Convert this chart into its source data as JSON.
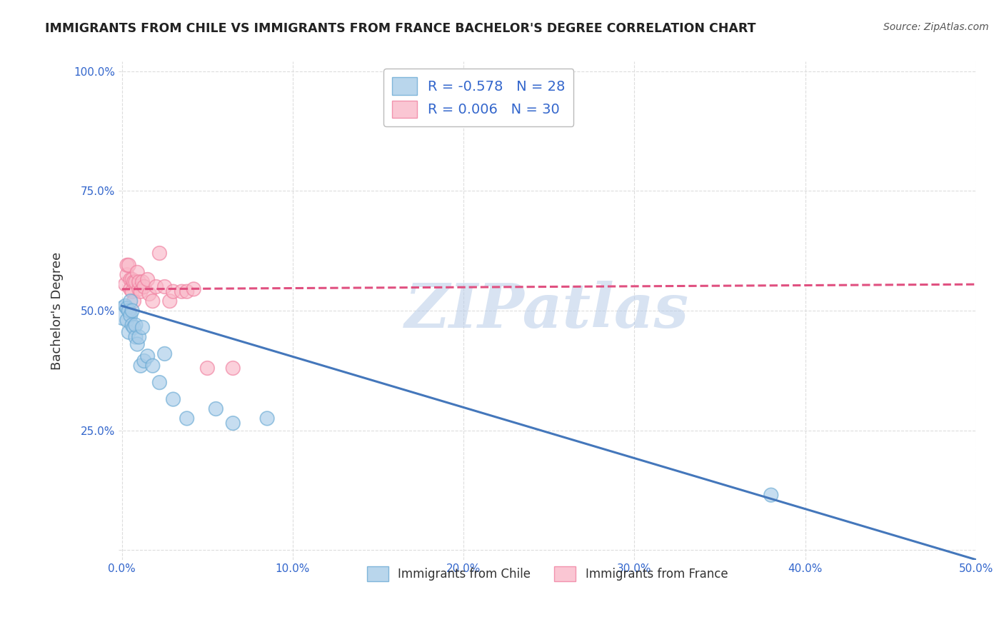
{
  "title": "IMMIGRANTS FROM CHILE VS IMMIGRANTS FROM FRANCE BACHELOR'S DEGREE CORRELATION CHART",
  "source": "Source: ZipAtlas.com",
  "ylabel": "Bachelor's Degree",
  "watermark": "ZIPatlas",
  "xlim": [
    -0.002,
    0.5
  ],
  "ylim": [
    -0.02,
    1.02
  ],
  "xticks": [
    0.0,
    0.1,
    0.2,
    0.3,
    0.4,
    0.5
  ],
  "yticks": [
    0.0,
    0.25,
    0.5,
    0.75,
    1.0
  ],
  "xticklabels": [
    "0.0%",
    "10.0%",
    "20.0%",
    "30.0%",
    "40.0%",
    "50.0%"
  ],
  "yticklabels": [
    "",
    "25.0%",
    "50.0%",
    "75.0%",
    "100.0%"
  ],
  "legend_chile": "Immigrants from Chile",
  "legend_france": "Immigrants from France",
  "R_chile": -0.578,
  "N_chile": 28,
  "R_france": 0.006,
  "N_france": 30,
  "chile_color": "#a8cce8",
  "france_color": "#f9b8c8",
  "chile_edge_color": "#6aaad4",
  "france_edge_color": "#f080a0",
  "chile_line_color": "#4477bb",
  "france_line_color": "#e05080",
  "grid_color": "#dddddd",
  "background_color": "#ffffff",
  "chile_x": [
    0.001,
    0.002,
    0.003,
    0.003,
    0.004,
    0.004,
    0.005,
    0.005,
    0.006,
    0.006,
    0.007,
    0.008,
    0.008,
    0.009,
    0.01,
    0.011,
    0.012,
    0.013,
    0.015,
    0.018,
    0.022,
    0.025,
    0.03,
    0.038,
    0.055,
    0.065,
    0.085,
    0.38
  ],
  "chile_y": [
    0.495,
    0.51,
    0.505,
    0.48,
    0.5,
    0.455,
    0.49,
    0.52,
    0.47,
    0.5,
    0.465,
    0.445,
    0.47,
    0.43,
    0.445,
    0.385,
    0.465,
    0.395,
    0.405,
    0.385,
    0.35,
    0.41,
    0.315,
    0.275,
    0.295,
    0.265,
    0.275,
    0.115
  ],
  "chile_sizes": [
    600,
    200,
    200,
    200,
    200,
    200,
    200,
    200,
    200,
    200,
    200,
    200,
    200,
    200,
    200,
    200,
    200,
    200,
    200,
    200,
    200,
    200,
    200,
    200,
    200,
    200,
    200,
    200
  ],
  "france_x": [
    0.002,
    0.003,
    0.003,
    0.004,
    0.005,
    0.005,
    0.006,
    0.006,
    0.007,
    0.007,
    0.008,
    0.009,
    0.01,
    0.01,
    0.011,
    0.012,
    0.013,
    0.015,
    0.016,
    0.018,
    0.02,
    0.022,
    0.025,
    0.028,
    0.03,
    0.035,
    0.038,
    0.042,
    0.05,
    0.065
  ],
  "france_y": [
    0.555,
    0.575,
    0.595,
    0.595,
    0.565,
    0.545,
    0.565,
    0.54,
    0.56,
    0.52,
    0.56,
    0.58,
    0.545,
    0.56,
    0.54,
    0.56,
    0.55,
    0.565,
    0.535,
    0.52,
    0.55,
    0.62,
    0.55,
    0.52,
    0.54,
    0.54,
    0.54,
    0.545,
    0.38,
    0.38
  ],
  "france_sizes": [
    200,
    200,
    200,
    200,
    200,
    200,
    200,
    200,
    200,
    200,
    200,
    200,
    200,
    200,
    200,
    200,
    200,
    200,
    200,
    200,
    200,
    200,
    200,
    200,
    200,
    200,
    200,
    200,
    200,
    200
  ],
  "chile_line_x": [
    0.0,
    0.5
  ],
  "chile_line_y": [
    0.51,
    -0.02
  ],
  "france_line_x": [
    0.0,
    0.5
  ],
  "france_line_y": [
    0.545,
    0.555
  ]
}
